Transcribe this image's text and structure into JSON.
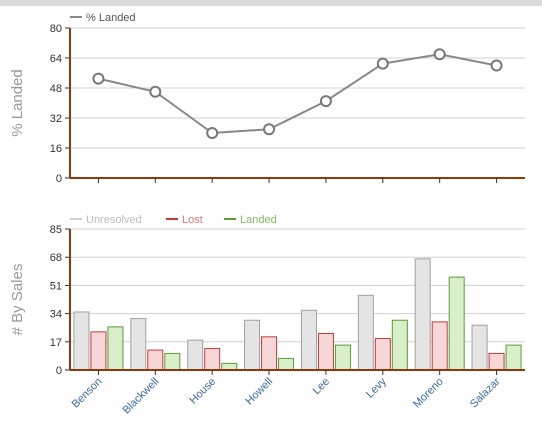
{
  "chart_data": [
    {
      "type": "line",
      "categories": [
        "Benson",
        "Blackwell",
        "House",
        "Howell",
        "Lee",
        "Levy",
        "Moreno",
        "Salazar"
      ],
      "series": [
        {
          "name": "% Landed",
          "values": [
            53,
            46,
            24,
            26,
            41,
            61,
            66,
            60
          ],
          "color": "#888888"
        }
      ],
      "ylabel": "% Landed",
      "ylim": [
        0,
        80
      ],
      "yticks": [
        "0",
        "16",
        "32",
        "48",
        "64",
        "80"
      ],
      "grid": true,
      "legend": "top-left"
    },
    {
      "type": "bar",
      "categories": [
        "Benson",
        "Blackwell",
        "House",
        "Howell",
        "Lee",
        "Levy",
        "Moreno",
        "Salazar"
      ],
      "series": [
        {
          "name": "Unresolved",
          "values": [
            35,
            31,
            18,
            30,
            36,
            45,
            67,
            27
          ],
          "color": "#c8c8c8"
        },
        {
          "name": "Lost",
          "values": [
            23,
            12,
            13,
            20,
            22,
            19,
            29,
            10
          ],
          "color": "#e89a9a"
        },
        {
          "name": "Landed",
          "values": [
            26,
            10,
            4,
            7,
            15,
            30,
            56,
            15
          ],
          "color": "#9bcf82"
        }
      ],
      "ylabel": "# By Sales",
      "ylim": [
        0,
        85
      ],
      "yticks": [
        "0",
        "17",
        "34",
        "51",
        "68",
        "85"
      ],
      "grid": true,
      "legend": "top-left"
    }
  ]
}
